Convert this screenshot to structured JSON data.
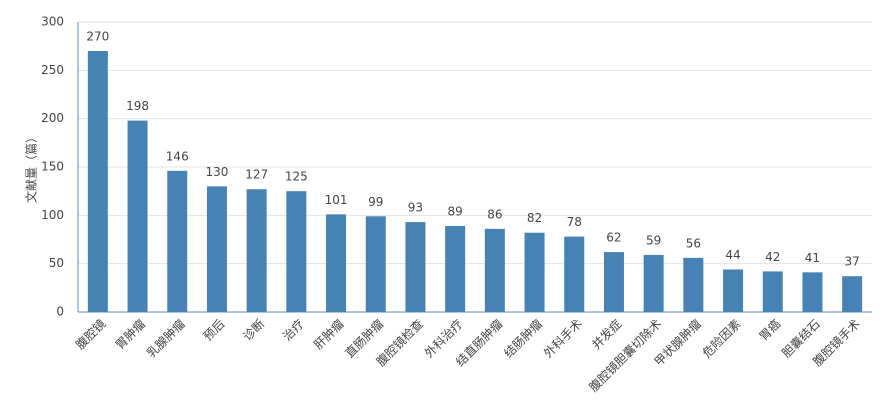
{
  "chart_data": {
    "type": "bar",
    "y_label": "文献量（篇）",
    "categories": [
      "腹腔镜",
      "胃肿瘤",
      "乳腺肿瘤",
      "预后",
      "诊断",
      "治疗",
      "肝肿瘤",
      "直肠肿瘤",
      "腹腔镜检查",
      "外科治疗",
      "结直肠肿瘤",
      "结肠肿瘤",
      "外科手术",
      "并发症",
      "腹腔镜胆囊切除术",
      "甲状腺肿瘤",
      "危险因素",
      "胃癌",
      "胆囊结石",
      "腹腔镜手术"
    ],
    "values": [
      270,
      198,
      146,
      130,
      127,
      125,
      101,
      99,
      93,
      89,
      86,
      82,
      78,
      62,
      59,
      56,
      44,
      42,
      41,
      37
    ],
    "color": "#4682b4",
    "ylim": [
      0,
      300
    ],
    "yticks": [
      0,
      50,
      100,
      150,
      200,
      250,
      300
    ],
    "grid": true
  }
}
